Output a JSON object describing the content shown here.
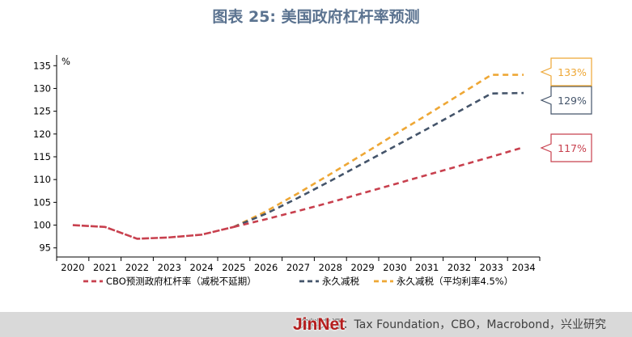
{
  "title": "图表 25: 美国政府杠杆率预测",
  "source": "资料来源：Tax Foundation，CBO，Macrobond，兴业研究",
  "watermark": "JinNet",
  "chart_data": {
    "type": "line",
    "unit_label": "%",
    "categories": [
      "2020",
      "2021",
      "2022",
      "2023",
      "2024",
      "2025",
      "2026",
      "2027",
      "2028",
      "2029",
      "2030",
      "2031",
      "2032",
      "2033",
      "2034"
    ],
    "ylim": [
      93,
      137
    ],
    "yticks": [
      95,
      100,
      105,
      110,
      115,
      120,
      125,
      130,
      135
    ],
    "legend_position": "bottom",
    "series": [
      {
        "name": "CBO预测政府杠杆率（减税不延期）",
        "color": "#c8404e",
        "values": [
          100.0,
          99.6,
          97.0,
          97.3,
          97.9,
          99.6,
          101.3,
          103.1,
          105.0,
          107.0,
          109.0,
          111.0,
          113.0,
          115.0,
          117.1
        ],
        "callout": "117%"
      },
      {
        "name": "永久减税",
        "color": "#44546a",
        "values": [
          100.0,
          99.6,
          97.0,
          97.3,
          97.9,
          99.6,
          102.5,
          106.0,
          109.7,
          113.5,
          117.3,
          121.1,
          125.0,
          128.9,
          129.0
        ],
        "callout": "129%"
      },
      {
        "name": "永久减税（平均利率4.5%）",
        "color": "#eea735",
        "values": [
          100.0,
          99.6,
          97.0,
          97.3,
          97.9,
          99.6,
          103.0,
          107.0,
          111.2,
          115.5,
          119.9,
          124.2,
          128.6,
          133.0,
          133.0
        ],
        "callout": "133%"
      }
    ]
  }
}
